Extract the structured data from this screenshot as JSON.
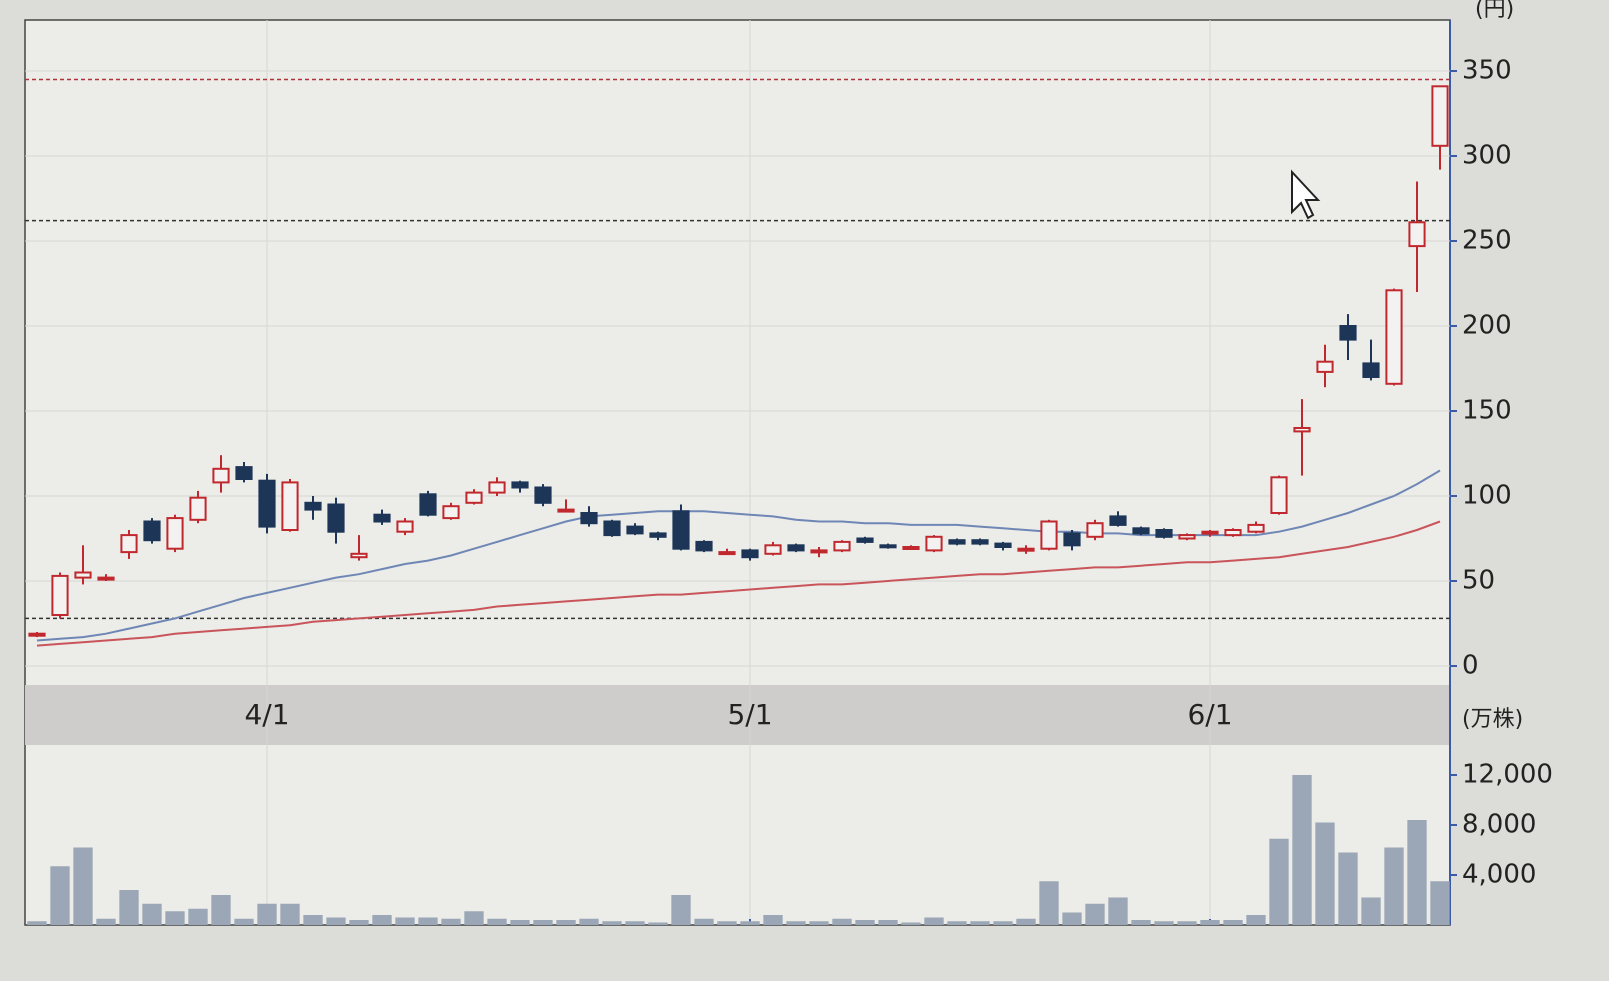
{
  "chart_data": {
    "type": "candlestick",
    "unit_label": "(円)",
    "categories": [
      null,
      null,
      null,
      null,
      null,
      null,
      null,
      null,
      null,
      null,
      "4/1",
      null,
      null,
      null,
      null,
      null,
      null,
      null,
      null,
      null,
      null,
      null,
      null,
      null,
      null,
      null,
      null,
      null,
      null,
      null,
      null,
      "5/1",
      null,
      null,
      null,
      null,
      null,
      null,
      null,
      null,
      null,
      null,
      null,
      null,
      null,
      null,
      null,
      null,
      null,
      null,
      null,
      "6/1",
      null,
      null,
      null,
      null,
      null,
      null,
      null,
      null,
      null,
      null
    ],
    "open": [
      18,
      30,
      52,
      52,
      67,
      85,
      69,
      86,
      108,
      117,
      109,
      80,
      96,
      95,
      64,
      89,
      79,
      101,
      87,
      96,
      102,
      108,
      105,
      92,
      90,
      85,
      82,
      78,
      91,
      73,
      67,
      68,
      66,
      71,
      67,
      68,
      75,
      71,
      70,
      68,
      74,
      74,
      72,
      69,
      69,
      78,
      76,
      88,
      81,
      80,
      75,
      79,
      77,
      79,
      90,
      138,
      173,
      200,
      178,
      166,
      247,
      306
    ],
    "high": [
      20,
      55,
      71,
      54,
      80,
      87,
      89,
      103,
      124,
      120,
      113,
      110,
      100,
      99,
      77,
      92,
      87,
      103,
      96,
      104,
      111,
      109,
      107,
      98,
      94,
      86,
      84,
      79,
      95,
      74,
      69,
      69,
      73,
      72,
      70,
      74,
      76,
      72,
      71,
      77,
      75,
      75,
      73,
      71,
      86,
      80,
      86,
      91,
      82,
      81,
      78,
      80,
      81,
      85,
      112,
      157,
      189,
      207,
      192,
      222,
      285,
      341
    ],
    "low": [
      17,
      28,
      48,
      50,
      63,
      72,
      67,
      84,
      102,
      108,
      78,
      79,
      86,
      72,
      62,
      83,
      77,
      88,
      86,
      95,
      100,
      102,
      94,
      91,
      82,
      76,
      77,
      74,
      68,
      67,
      66,
      62,
      65,
      67,
      64,
      67,
      72,
      69,
      69,
      67,
      71,
      71,
      68,
      66,
      68,
      68,
      74,
      82,
      77,
      75,
      74,
      76,
      76,
      78,
      89,
      112,
      164,
      180,
      168,
      165,
      220,
      292
    ],
    "close": [
      19,
      53,
      55,
      52,
      77,
      74,
      87,
      99,
      116,
      110,
      82,
      108,
      92,
      79,
      66,
      85,
      85,
      89,
      94,
      102,
      108,
      105,
      96,
      92,
      84,
      77,
      78,
      76,
      69,
      68,
      67,
      64,
      71,
      68,
      68,
      73,
      73,
      70,
      70,
      76,
      72,
      72,
      70,
      69,
      85,
      71,
      84,
      83,
      78,
      76,
      77,
      79,
      80,
      83,
      111,
      140,
      179,
      192,
      170,
      221,
      261,
      341
    ],
    "up_color": "#c0282e",
    "down_color": "#1d3557",
    "moving_averages": [
      {
        "color": "#6f87b5",
        "values": [
          15,
          16,
          17,
          19,
          22,
          25,
          28,
          32,
          36,
          40,
          43,
          46,
          49,
          52,
          54,
          57,
          60,
          62,
          65,
          69,
          73,
          77,
          81,
          85,
          88,
          89,
          90,
          91,
          91,
          91,
          90,
          89,
          88,
          86,
          85,
          85,
          84,
          84,
          83,
          83,
          83,
          82,
          81,
          80,
          79,
          79,
          78,
          78,
          77,
          77,
          77,
          77,
          77,
          77,
          79,
          82,
          86,
          90,
          95,
          100,
          107,
          115
        ]
      },
      {
        "color": "#c9555b",
        "values": [
          12,
          13,
          14,
          15,
          16,
          17,
          19,
          20,
          21,
          22,
          23,
          24,
          26,
          27,
          28,
          29,
          30,
          31,
          32,
          33,
          35,
          36,
          37,
          38,
          39,
          40,
          41,
          42,
          42,
          43,
          44,
          45,
          46,
          47,
          48,
          48,
          49,
          50,
          51,
          52,
          53,
          54,
          54,
          55,
          56,
          57,
          58,
          58,
          59,
          60,
          61,
          61,
          62,
          63,
          64,
          66,
          68,
          70,
          73,
          76,
          80,
          85
        ]
      }
    ],
    "reference_lines": [
      {
        "value": 345,
        "color": "#b2323a"
      },
      {
        "value": 262,
        "color": "#333333"
      },
      {
        "value": 28,
        "color": "#333333"
      }
    ],
    "ylim": [
      -10,
      380
    ],
    "yticks": [
      0,
      50,
      100,
      150,
      200,
      250,
      300,
      350
    ],
    "grid": true,
    "volume": {
      "unit_label": "(万株)",
      "color": "#9ba6b6",
      "values": [
        300,
        4700,
        6200,
        500,
        2800,
        1700,
        1100,
        1300,
        2400,
        500,
        1700,
        1700,
        800,
        600,
        400,
        800,
        600,
        600,
        500,
        1100,
        500,
        400,
        400,
        400,
        500,
        300,
        300,
        200,
        2400,
        500,
        300,
        300,
        800,
        300,
        300,
        500,
        400,
        400,
        200,
        600,
        300,
        300,
        300,
        500,
        3500,
        1000,
        1700,
        2200,
        400,
        300,
        300,
        400,
        400,
        800,
        6900,
        12000,
        8200,
        5800,
        2200,
        6200,
        8400,
        3500
      ],
      "ylim": [
        0,
        14000
      ],
      "yticks": [
        {
          "value": 4000,
          "label": "4,000"
        },
        {
          "value": 8000,
          "label": "8,000"
        },
        {
          "value": 12000,
          "label": "12,000"
        }
      ]
    }
  }
}
